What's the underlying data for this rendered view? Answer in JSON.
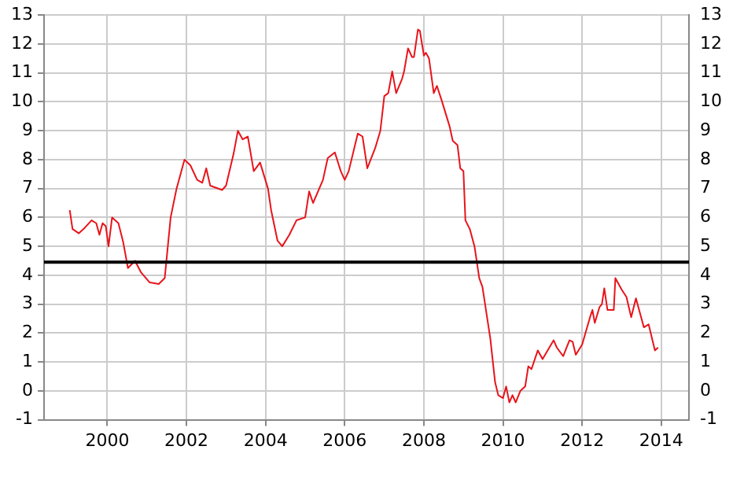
{
  "chart_data": {
    "type": "line",
    "xlim": [
      1998.4,
      2014.7
    ],
    "xticks": [
      2000,
      2002,
      2004,
      2006,
      2008,
      2010,
      2012,
      2014
    ],
    "ylim": [
      -1,
      13
    ],
    "yticks": [
      -1,
      0,
      1,
      2,
      3,
      4,
      5,
      6,
      7,
      8,
      9,
      10,
      11,
      12,
      13
    ],
    "y2lim": [
      -1,
      13
    ],
    "y2ticks": [
      -1,
      0,
      1,
      2,
      3,
      4,
      5,
      6,
      7,
      8,
      9,
      10,
      11,
      12,
      13
    ],
    "grid": true,
    "legend": false,
    "marker": "none",
    "series": [
      {
        "color": "#e8141b",
        "x": [
          1999.05,
          1999.12,
          1999.28,
          1999.4,
          1999.6,
          1999.72,
          1999.8,
          1999.88,
          1999.96,
          2000.03,
          2000.12,
          2000.28,
          2000.4,
          2000.52,
          2000.7,
          2000.85,
          2001.07,
          2001.3,
          2001.45,
          2001.6,
          2001.75,
          2001.95,
          2002.1,
          2002.27,
          2002.4,
          2002.5,
          2002.6,
          2002.9,
          2003.0,
          2003.19,
          2003.3,
          2003.42,
          2003.55,
          2003.7,
          2003.86,
          2004.06,
          2004.14,
          2004.3,
          2004.42,
          2004.6,
          2004.78,
          2005.0,
          2005.1,
          2005.2,
          2005.45,
          2005.57,
          2005.75,
          2005.9,
          2006.0,
          2006.1,
          2006.33,
          2006.45,
          2006.57,
          2006.77,
          2006.9,
          2007.0,
          2007.1,
          2007.2,
          2007.3,
          2007.45,
          2007.5,
          2007.6,
          2007.7,
          2007.75,
          2007.85,
          2007.9,
          2008.0,
          2008.05,
          2008.13,
          2008.25,
          2008.33,
          2008.45,
          2008.65,
          2008.73,
          2008.85,
          2008.92,
          2009.0,
          2009.05,
          2009.16,
          2009.28,
          2009.4,
          2009.48,
          2009.68,
          2009.8,
          2009.88,
          2010.0,
          2010.08,
          2010.16,
          2010.24,
          2010.32,
          2010.44,
          2010.56,
          2010.64,
          2010.72,
          2010.88,
          2011.0,
          2011.28,
          2011.36,
          2011.52,
          2011.68,
          2011.76,
          2011.84,
          2012.0,
          2012.2,
          2012.26,
          2012.32,
          2012.44,
          2012.5,
          2012.56,
          2012.64,
          2012.8,
          2012.84,
          2013.0,
          2013.12,
          2013.24,
          2013.36,
          2013.56,
          2013.68,
          2013.84,
          2013.92
        ],
        "values": [
          6.25,
          5.6,
          5.45,
          5.6,
          5.9,
          5.8,
          5.4,
          5.8,
          5.7,
          5.0,
          6.0,
          5.8,
          5.15,
          4.25,
          4.5,
          4.1,
          3.75,
          3.7,
          3.9,
          6.0,
          7.0,
          8.0,
          7.8,
          7.3,
          7.2,
          7.7,
          7.1,
          6.95,
          7.1,
          8.2,
          9.0,
          8.7,
          8.8,
          7.6,
          7.9,
          7.0,
          6.25,
          5.2,
          5.0,
          5.4,
          5.9,
          6.0,
          6.9,
          6.5,
          7.3,
          8.05,
          8.25,
          7.6,
          7.3,
          7.6,
          8.9,
          8.8,
          7.7,
          8.4,
          9.0,
          10.2,
          10.3,
          11.05,
          10.3,
          10.8,
          11.05,
          11.85,
          11.55,
          11.55,
          12.5,
          12.45,
          11.6,
          11.7,
          11.5,
          10.3,
          10.55,
          10.05,
          9.15,
          8.65,
          8.5,
          7.7,
          7.6,
          5.9,
          5.6,
          5.0,
          3.9,
          3.6,
          1.8,
          0.3,
          -0.15,
          -0.25,
          0.15,
          -0.4,
          -0.15,
          -0.4,
          0.0,
          0.15,
          0.85,
          0.75,
          1.4,
          1.1,
          1.75,
          1.5,
          1.2,
          1.75,
          1.7,
          1.25,
          1.6,
          2.55,
          2.8,
          2.35,
          2.9,
          3.0,
          3.55,
          2.8,
          2.8,
          3.9,
          3.5,
          3.25,
          2.55,
          3.2,
          2.2,
          2.3,
          1.4,
          1.5
        ]
      }
    ],
    "ref_lines": [
      {
        "axis": "y",
        "value": 4.45,
        "color": "#000000"
      }
    ]
  }
}
